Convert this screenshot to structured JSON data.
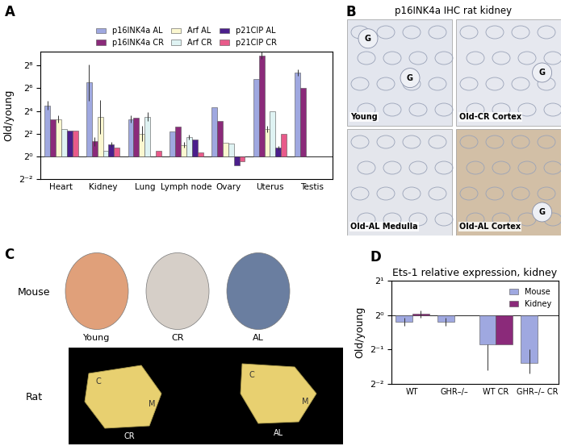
{
  "chart_data": [
    {
      "type": "bar",
      "panel_label": "A",
      "y_label": "Old/young",
      "log": "y",
      "legend": "top",
      "categories": [
        "Heart",
        "Kidney",
        "Lung",
        "Lymph node",
        "Ovary",
        "Uterus",
        "Testis"
      ],
      "ylim": [
        0.25,
        600
      ],
      "yticks": [
        {
          "value": 0.25,
          "label": "2⁻²"
        },
        {
          "value": 1,
          "label": "2⁰"
        },
        {
          "value": 4,
          "label": "2²"
        },
        {
          "value": 16,
          "label": "2⁴"
        },
        {
          "value": 64,
          "label": "2⁶"
        },
        {
          "value": 256,
          "label": "2⁸"
        }
      ],
      "baseline": 1,
      "series": [
        {
          "name": "p16INK4a AL",
          "color": "#9fa8e0",
          "values": [
            22.6,
            90.5,
            9.8,
            4.6,
            20.4,
            111.4,
            168.9
          ],
          "errors": [
            [
              17,
              30
            ],
            [
              30,
              270
            ],
            [
              8,
              12
            ],
            null,
            null,
            null,
            [
              140,
              205
            ]
          ]
        },
        {
          "name": "p16INK4a CR",
          "color": "#8b2a7a",
          "values": [
            9.8,
            2.5,
            10.6,
            6.1,
            8.6,
            478,
            64
          ],
          "errors": [
            null,
            [
              1.9,
              3.3
            ],
            null,
            null,
            null,
            [
              380,
              600
            ],
            null
          ]
        },
        {
          "name": "Arf AL",
          "color": "#fbf7d0",
          "values": [
            9.8,
            11.3,
            4.0,
            2.0,
            2.3,
            5.3,
            null
          ],
          "errors": [
            [
              8,
              12
            ],
            [
              4,
              32
            ],
            [
              2.5,
              6.5
            ],
            [
              1.7,
              2.4
            ],
            null,
            [
              4.3,
              6.5
            ],
            null
          ]
        },
        {
          "name": "Arf CR",
          "color": "#dff3f3",
          "values": [
            5.3,
            1.4,
            11.3,
            3.2,
            2.2,
            16,
            null
          ],
          "errors": [
            null,
            null,
            [
              8.5,
              15
            ],
            [
              2.8,
              3.7
            ],
            null,
            null,
            null
          ]
        },
        {
          "name": "p21CIP AL",
          "color": "#4b1f8c",
          "values": [
            4.9,
            2.1,
            null,
            2.8,
            0.57,
            1.7,
            null
          ],
          "errors": [
            null,
            [
              1.8,
              2.4
            ],
            null,
            null,
            null,
            [
              1.5,
              1.9
            ],
            null
          ]
        },
        {
          "name": "p21CIP CR",
          "color": "#e85a8a",
          "values": [
            4.9,
            1.7,
            1.4,
            1.3,
            0.73,
            4.0,
            null
          ],
          "errors": [
            null,
            null,
            null,
            null,
            null,
            null,
            null
          ]
        }
      ]
    },
    {
      "type": "bar",
      "panel_label": "D",
      "title": "Ets-1 relative expression, kidney",
      "y_label": "Old/young",
      "log": "y",
      "legend": "upper right",
      "categories": [
        "WT",
        "GHR–/–",
        "WT CR",
        "GHR–/– CR"
      ],
      "ylim": [
        0.25,
        2
      ],
      "yticks": [
        {
          "value": 0.25,
          "label": "2⁻²"
        },
        {
          "value": 0.5,
          "label": "2⁻¹"
        },
        {
          "value": 1,
          "label": "2⁰"
        },
        {
          "value": 2,
          "label": "2¹"
        }
      ],
      "baseline": 1,
      "series": [
        {
          "name": "Mouse",
          "color": "#9fa8e0",
          "values": [
            0.87,
            0.87,
            0.55,
            0.38
          ],
          "errors": [
            [
              0.8,
              0.95
            ],
            [
              0.8,
              0.95
            ],
            [
              0.33,
              0.55
            ],
            [
              0.31,
              0.5
            ]
          ]
        },
        {
          "name": "Kidney",
          "color": "#8b2a7a",
          "values": [
            1.03,
            null,
            0.55,
            null
          ],
          "errors": [
            [
              0.95,
              1.1
            ],
            null,
            null,
            null
          ]
        }
      ]
    }
  ],
  "images": [
    {
      "panel_label": "B",
      "title": "p16INK4a IHC rat kidney",
      "tiles": [
        {
          "label": "Young",
          "marks": [
            "G",
            "G"
          ],
          "color": "#e3e6ee"
        },
        {
          "label": "Old-CR Cortex",
          "marks": [
            "G"
          ],
          "color": "#e6e8ef"
        },
        {
          "label": "Old-AL Medulla",
          "marks": [],
          "color": "#e4e6ec"
        },
        {
          "label": "Old-AL Cortex",
          "marks": [
            "G"
          ],
          "color": "#d2bfa6"
        }
      ]
    },
    {
      "panel_label": "C",
      "rows": [
        {
          "label": "Mouse",
          "items": [
            {
              "label": "Young",
              "marks": [],
              "color": "#e0a07a"
            },
            {
              "label": "CR",
              "marks": [],
              "color": "#d6cfc8"
            },
            {
              "label": "AL",
              "marks": [],
              "color": "#6a7ea0"
            }
          ]
        },
        {
          "label": "Rat",
          "items": [
            {
              "label": "CR",
              "marks": [
                "C",
                "M"
              ],
              "color": "#e8d070"
            },
            {
              "label": "AL",
              "marks": [
                "C",
                "M"
              ],
              "color": "#e8d070"
            }
          ]
        }
      ]
    }
  ]
}
